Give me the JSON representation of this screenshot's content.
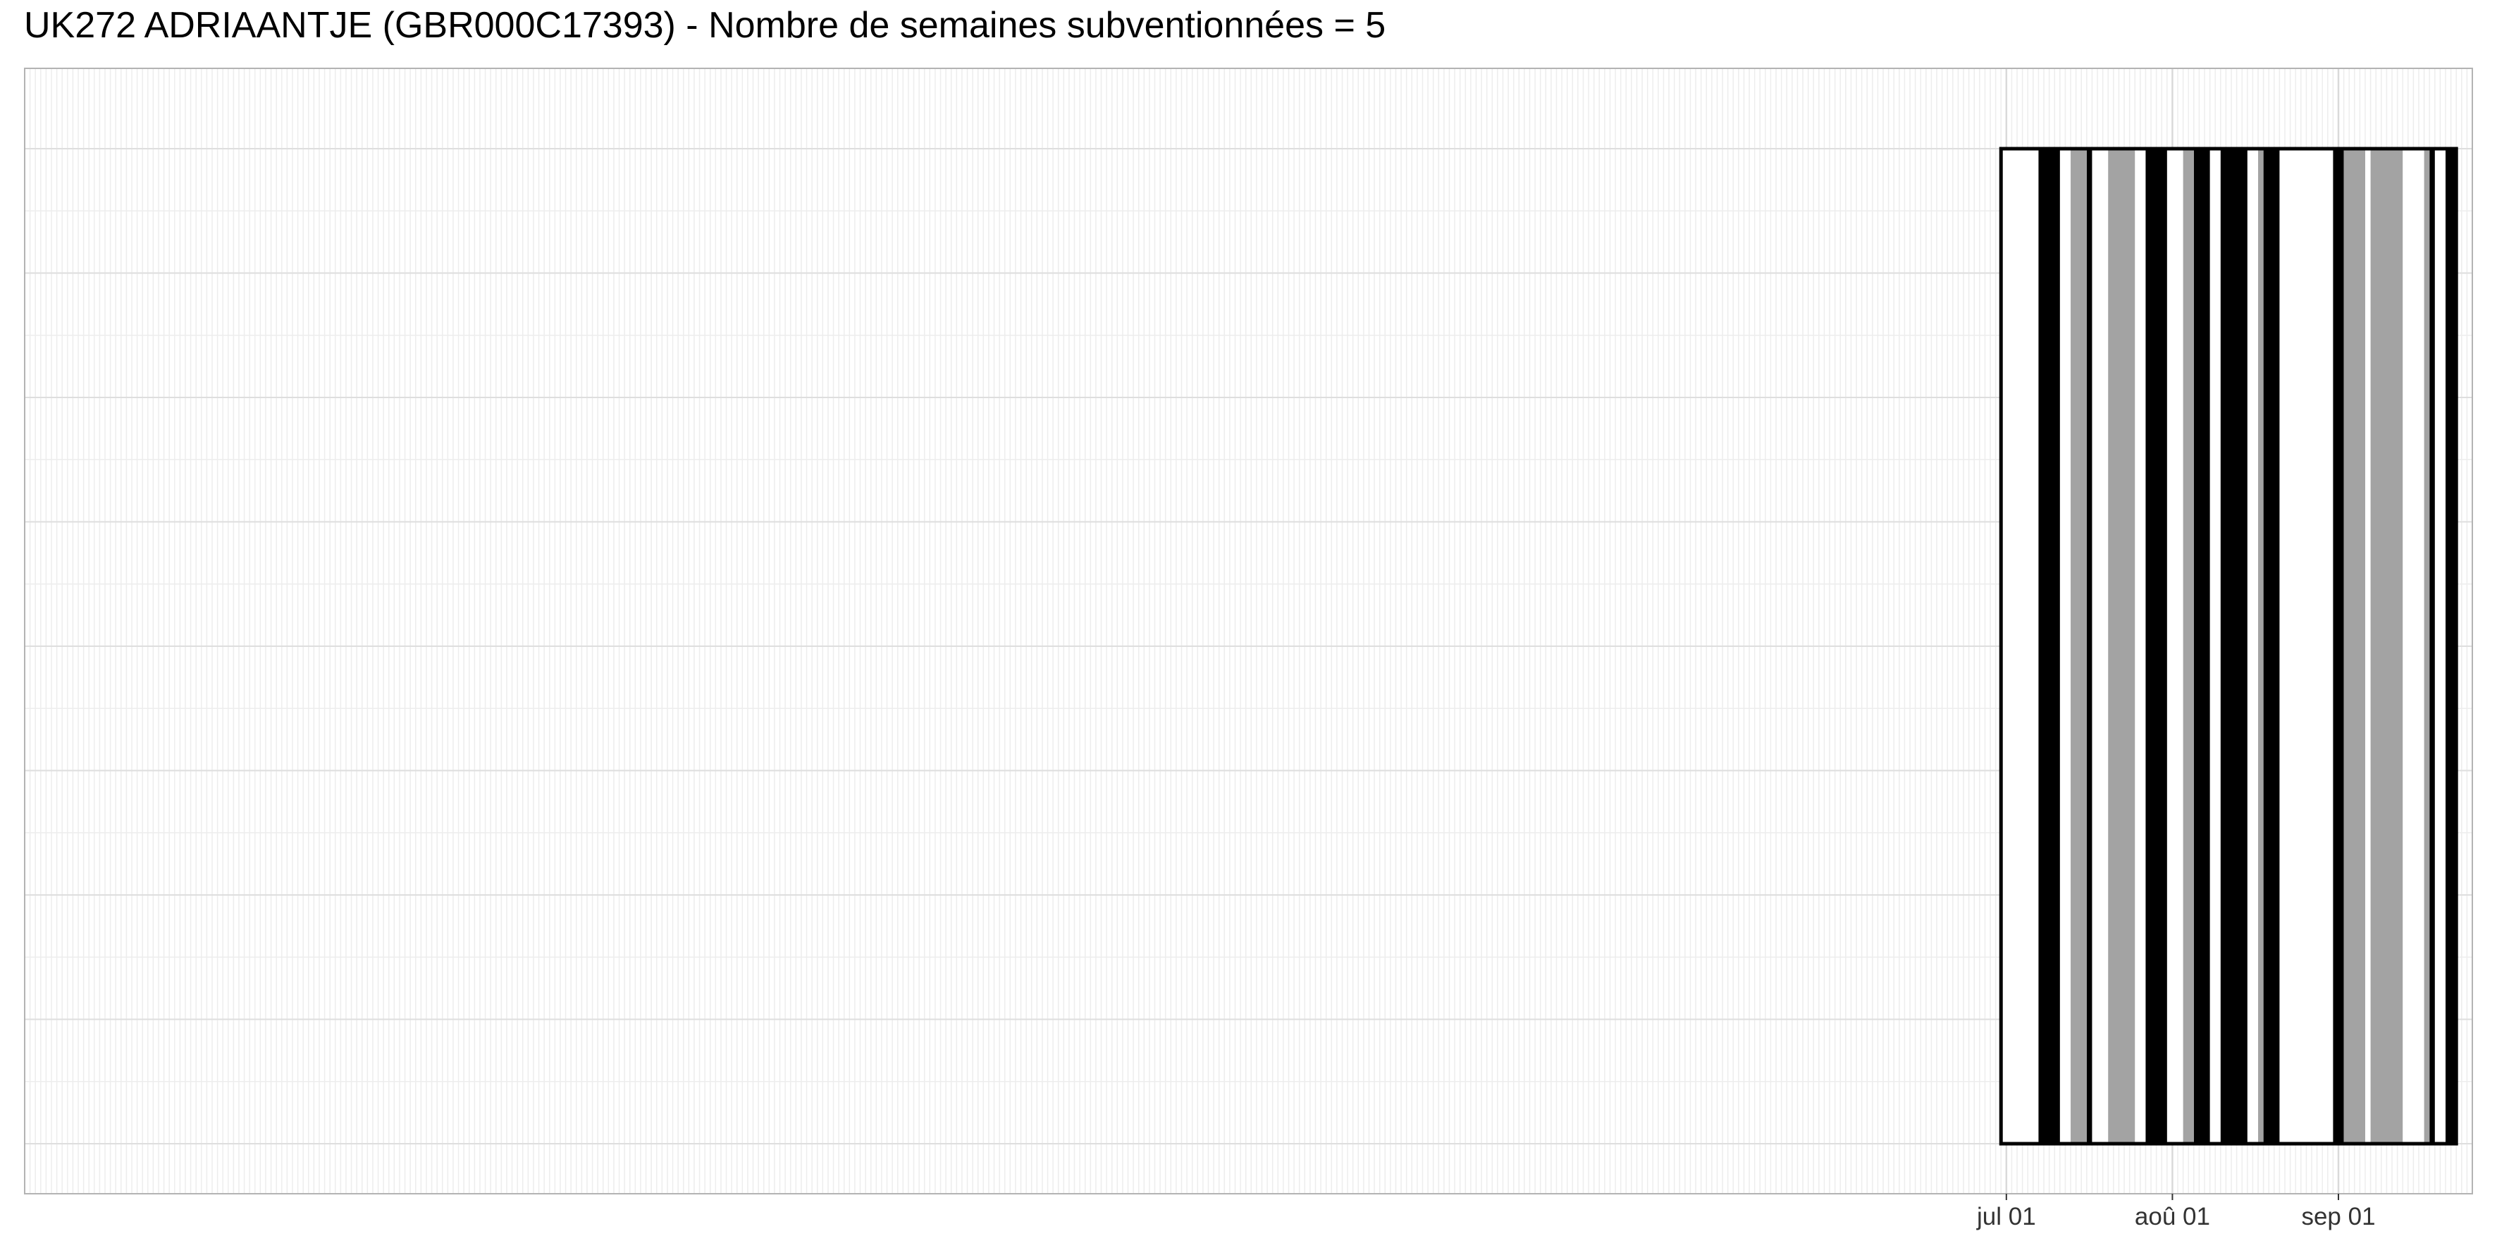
{
  "chart_data": {
    "type": "timeline",
    "title": "UK272 ADRIAANTJE (GBR000C17393) - Nombre de semaines subventionnées = 5",
    "x_axis": {
      "ticks": [
        {
          "date": "2021-07-01",
          "label": "jul 01"
        },
        {
          "date": "2021-08-01",
          "label": "aoû 01"
        },
        {
          "date": "2021-09-01",
          "label": "sep 01"
        }
      ],
      "range": [
        "2020-06-26",
        "2021-09-26"
      ]
    },
    "grid": true,
    "series": [
      {
        "fill": "#000000",
        "intervals": [
          [
            "2021-07-07",
            "2021-07-11"
          ],
          [
            "2021-07-16",
            "2021-07-17"
          ],
          [
            "2021-07-27",
            "2021-07-31"
          ],
          [
            "2021-08-05",
            "2021-08-08"
          ],
          [
            "2021-08-10",
            "2021-08-15"
          ],
          [
            "2021-08-18",
            "2021-08-21"
          ],
          [
            "2021-08-31",
            "2021-09-02"
          ],
          [
            "2021-09-18",
            "2021-09-19"
          ],
          [
            "2021-09-21",
            "2021-09-23"
          ]
        ]
      },
      {
        "fill": "#a3a3a3",
        "intervals": [
          [
            "2021-07-13",
            "2021-07-16"
          ],
          [
            "2021-07-20",
            "2021-07-25"
          ],
          [
            "2021-08-03",
            "2021-08-05"
          ],
          [
            "2021-08-17",
            "2021-08-18"
          ],
          [
            "2021-09-02",
            "2021-09-06"
          ],
          [
            "2021-09-07",
            "2021-09-13"
          ],
          [
            "2021-09-17",
            "2021-09-18"
          ]
        ]
      }
    ],
    "frame": [
      "2021-06-30",
      "2021-09-23"
    ]
  }
}
